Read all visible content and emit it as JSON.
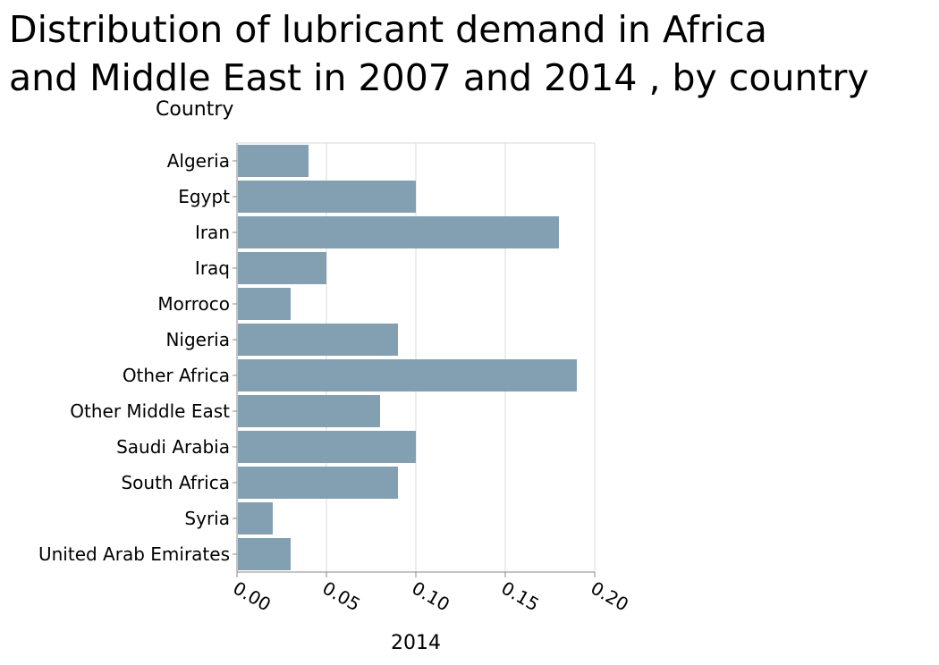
{
  "chart_data": {
    "type": "bar",
    "orientation": "horizontal",
    "title": "Distribution of lubricant demand in Africa and Middle East in 2007 and 2014 , by country",
    "title_lines": [
      "Distribution of lubricant demand in Africa",
      "and Middle East in 2007 and 2014 , by country"
    ],
    "ylabel": "Country",
    "xlabel": "2014",
    "categories": [
      "Algeria",
      "Egypt",
      "Iran",
      "Iraq",
      "Morroco",
      "Nigeria",
      "Other Africa",
      "Other Middle East",
      "Saudi Arabia",
      "South Africa",
      "Syria",
      "United Arab Emirates"
    ],
    "values": [
      0.04,
      0.1,
      0.18,
      0.05,
      0.03,
      0.09,
      0.19,
      0.08,
      0.1,
      0.09,
      0.02,
      0.03
    ],
    "xlim": [
      0,
      0.2
    ],
    "xticks": [
      "0.00",
      "0.05",
      "0.10",
      "0.15",
      "0.20"
    ],
    "xtick_values": [
      0,
      0.05,
      0.1,
      0.15,
      0.2
    ],
    "grid": true,
    "bar_color": "#83a0b2",
    "grid_color": "#d9d9d9",
    "axis_color": "#888888"
  }
}
